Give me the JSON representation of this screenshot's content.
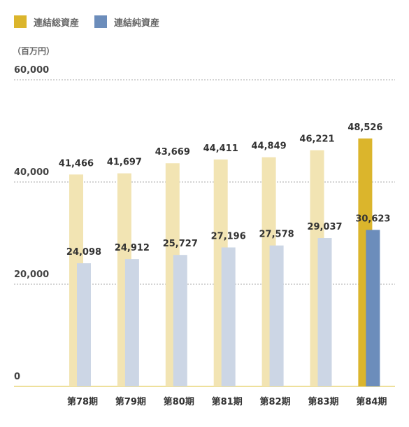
{
  "unit_label": "（百万円）",
  "legend": [
    {
      "label": "連結総資産",
      "color": "#dbb52c"
    },
    {
      "label": "連結純資産",
      "color": "#6c8dbb"
    }
  ],
  "colors": {
    "assets_faded": "#f2e4b3",
    "equity_faded": "#ccd6e5",
    "assets_highlight": "#dbb52c",
    "equity_highlight": "#6c8dbb",
    "grid": "#aaaaaa",
    "baseline": "#e8d57a"
  },
  "chart_data": {
    "type": "bar",
    "categories": [
      "第78期",
      "第79期",
      "第80期",
      "第81期",
      "第82期",
      "第83期",
      "第84期"
    ],
    "series": [
      {
        "name": "連結総資産",
        "values": [
          41466,
          41697,
          43669,
          44411,
          44849,
          46221,
          48526
        ],
        "labels": [
          "41,466",
          "41,697",
          "43,669",
          "44,411",
          "44,849",
          "46,221",
          "48,526"
        ]
      },
      {
        "name": "連結純資産",
        "values": [
          24098,
          24912,
          25727,
          27196,
          27578,
          29037,
          30623
        ],
        "labels": [
          "24,098",
          "24,912",
          "25,727",
          "27,196",
          "27,578",
          "29,037",
          "30,623"
        ]
      }
    ],
    "yticks": [
      0,
      20000,
      40000,
      60000
    ],
    "ytick_labels": [
      "0",
      "20,000",
      "40,000",
      "60,000"
    ],
    "ylim": [
      0,
      60000
    ],
    "highlight_index": 6,
    "grid": true
  }
}
